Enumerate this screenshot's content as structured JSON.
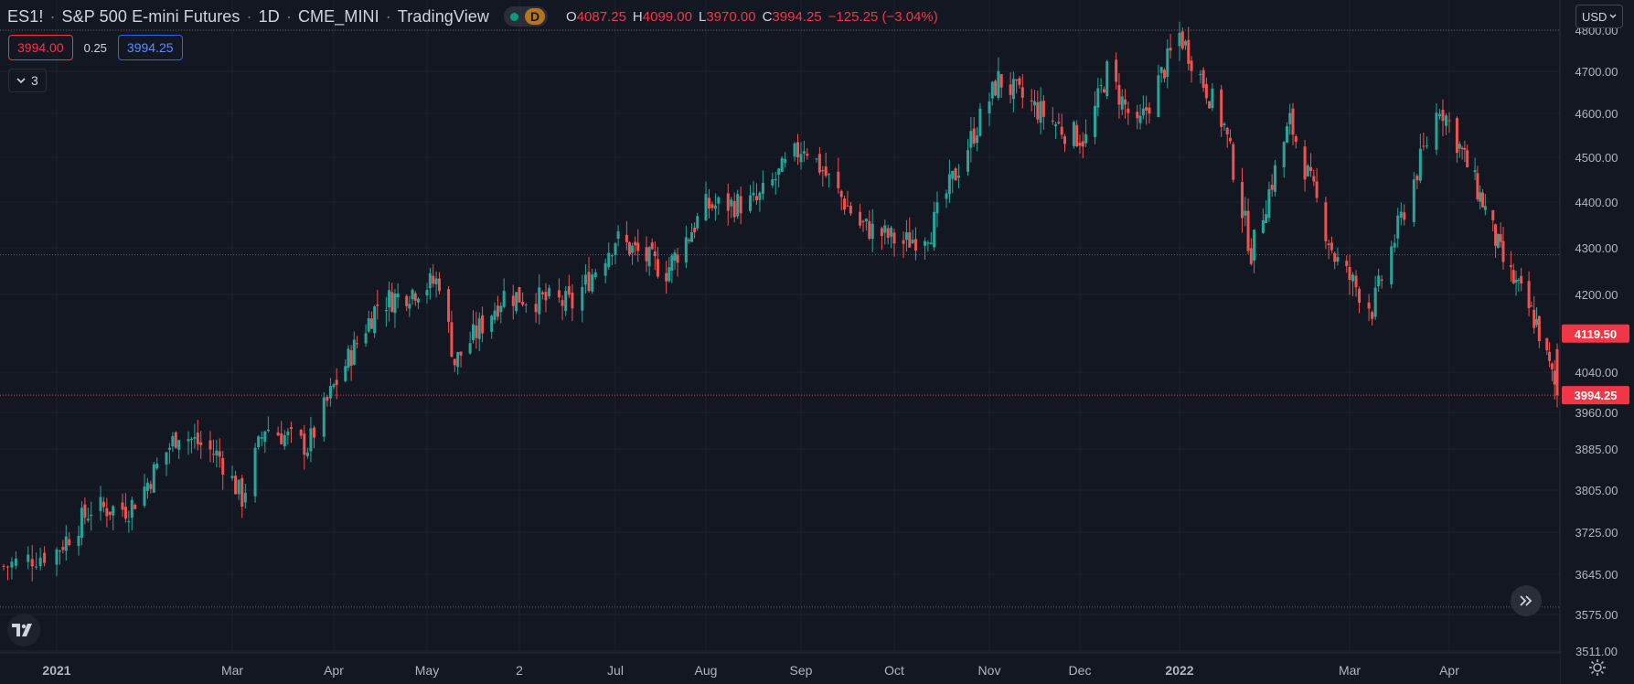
{
  "header": {
    "symbol": "ES1!",
    "description": "S&P 500 E-mini Futures",
    "interval": "1D",
    "exchange": "CME_MINI",
    "source": "TradingView",
    "interval_badge": "D",
    "status_color": "#089981",
    "ohlc": {
      "open_label": "O",
      "open": "4087.25",
      "high_label": "H",
      "high": "4099.00",
      "low_label": "L",
      "low": "3970.00",
      "close_label": "C",
      "close": "3994.25",
      "change": "−125.25 (−3.04%)"
    }
  },
  "trade": {
    "bid": "3994.00",
    "spread": "0.25",
    "ask": "3994.25"
  },
  "collapse": {
    "count": "3"
  },
  "currency": {
    "label": "USD"
  },
  "colors": {
    "background": "#131722",
    "grid": "#1e222d",
    "up": "#26a69a",
    "down": "#ef5350",
    "axis_text": "#b2b5be",
    "price_line": "#f23645"
  },
  "icons": {
    "scroll": "double-chevron-right-icon",
    "logo": "tradingview-logo-icon",
    "settings": "gear-icon",
    "collapse": "chevron-down-icon",
    "currency": "chevron-down-icon"
  },
  "chart_data": {
    "type": "candlestick",
    "series_name": "ES1!",
    "x_range": [
      "2020-12-22",
      "2022-05-13"
    ],
    "y_scale": "log",
    "ylim": [
      3511,
      4810
    ],
    "grid": true,
    "y_ticks": [
      "4800.00",
      "4700.00",
      "4600.00",
      "4500.00",
      "4400.00",
      "4300.00",
      "4200.00",
      "4040.00",
      "3960.00",
      "3885.00",
      "3805.00",
      "3725.00",
      "3645.00",
      "3575.00",
      "3511.00"
    ],
    "y_tick_values": [
      4800,
      4700,
      4600,
      4500,
      4400,
      4300,
      4200,
      4040,
      3960,
      3885,
      3805,
      3725,
      3645,
      3575,
      3511
    ],
    "x_ticks": [
      {
        "label": "2021",
        "date": "2021-01-04"
      },
      {
        "label": "Mar",
        "date": "2021-03-01"
      },
      {
        "label": "Apr",
        "date": "2021-04-01"
      },
      {
        "label": "May",
        "date": "2021-05-03"
      },
      {
        "label": "2",
        "date": "2021-06-02"
      },
      {
        "label": "Jul",
        "date": "2021-07-01"
      },
      {
        "label": "Aug",
        "date": "2021-08-02"
      },
      {
        "label": "Sep",
        "date": "2021-09-01"
      },
      {
        "label": "Oct",
        "date": "2021-10-01"
      },
      {
        "label": "Nov",
        "date": "2021-11-01"
      },
      {
        "label": "Dec",
        "date": "2021-12-01"
      },
      {
        "label": "2022",
        "date": "2022-01-03"
      },
      {
        "label": "Mar",
        "date": "2022-03-01"
      },
      {
        "label": "Apr",
        "date": "2022-04-01"
      }
    ],
    "price_labels": [
      {
        "value": 4119.5,
        "label": "4119.50",
        "style": "filled"
      },
      {
        "value": 3994.25,
        "label": "3994.25",
        "style": "filled"
      }
    ],
    "reference_lines": [
      4285,
      4800,
      3588
    ],
    "close_path": [
      [
        "2020-12-22",
        3660
      ],
      [
        "2021-01-04",
        3690
      ],
      [
        "2021-01-15",
        3770
      ],
      [
        "2021-01-27",
        3770
      ],
      [
        "2021-02-01",
        3810
      ],
      [
        "2021-02-12",
        3920
      ],
      [
        "2021-02-25",
        3870
      ],
      [
        "2021-03-04",
        3790
      ],
      [
        "2021-03-11",
        3930
      ],
      [
        "2021-03-24",
        3890
      ],
      [
        "2021-04-01",
        4010
      ],
      [
        "2021-04-16",
        4180
      ],
      [
        "2021-05-07",
        4230
      ],
      [
        "2021-05-12",
        4060
      ],
      [
        "2021-05-28",
        4200
      ],
      [
        "2021-06-18",
        4180
      ],
      [
        "2021-07-01",
        4320
      ],
      [
        "2021-07-19",
        4250
      ],
      [
        "2021-08-02",
        4390
      ],
      [
        "2021-08-18",
        4400
      ],
      [
        "2021-09-02",
        4530
      ],
      [
        "2021-09-20",
        4350
      ],
      [
        "2021-10-04",
        4310
      ],
      [
        "2021-10-13",
        4340
      ],
      [
        "2021-11-04",
        4680
      ],
      [
        "2021-11-26",
        4560
      ],
      [
        "2021-12-03",
        4540
      ],
      [
        "2021-12-10",
        4700
      ],
      [
        "2021-12-20",
        4560
      ],
      [
        "2022-01-03",
        4790
      ],
      [
        "2022-01-18",
        4570
      ],
      [
        "2022-01-27",
        4290
      ],
      [
        "2022-02-09",
        4580
      ],
      [
        "2022-02-24",
        4280
      ],
      [
        "2022-03-08",
        4170
      ],
      [
        "2022-03-29",
        4620
      ],
      [
        "2022-04-14",
        4400
      ],
      [
        "2022-04-22",
        4270
      ],
      [
        "2022-05-05",
        4140
      ],
      [
        "2022-05-13",
        3994
      ]
    ],
    "last": {
      "open": 4087.25,
      "high": 4099.0,
      "low": 3970.0,
      "close": 3994.25
    }
  }
}
